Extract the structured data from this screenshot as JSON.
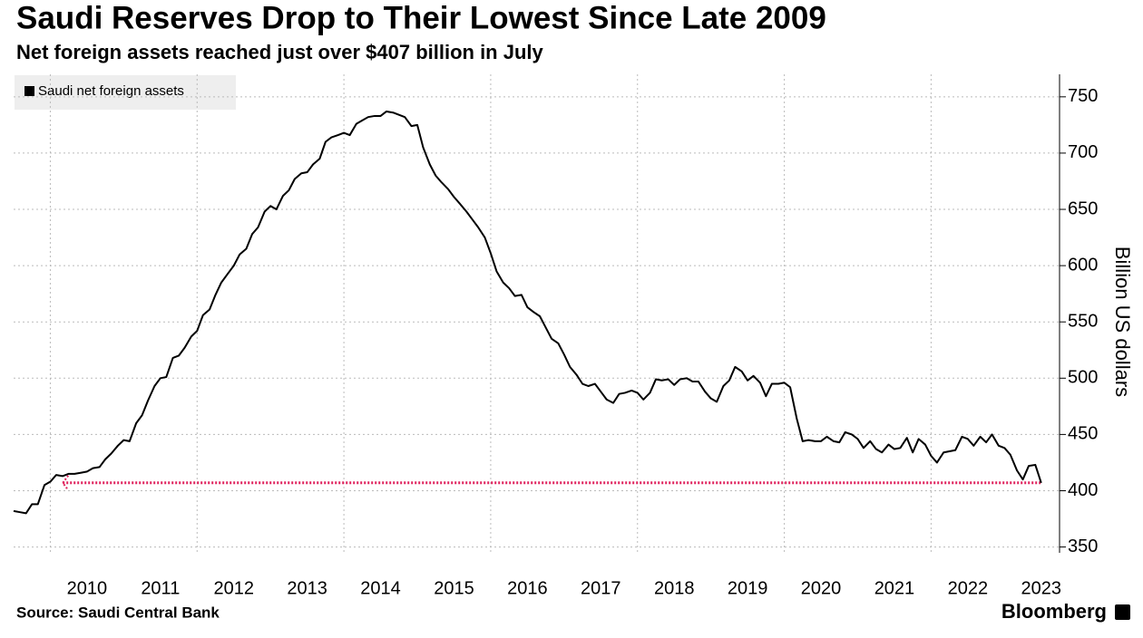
{
  "chart_data": {
    "type": "line",
    "title": "Saudi Reserves Drop to Their Lowest Since Late 2009",
    "subtitle": "Net foreign assets reached just over $407 billion in July",
    "y_axis_label": "Billion US dollars",
    "source": "Source: Saudi Central Bank",
    "brand": "Bloomberg",
    "x": [
      2009.5,
      2009.58,
      2009.67,
      2009.75,
      2009.83,
      2009.92,
      2010,
      2010.08,
      2010.17,
      2010.25,
      2010.33,
      2010.42,
      2010.5,
      2010.58,
      2010.67,
      2010.75,
      2010.83,
      2010.92,
      2011,
      2011.08,
      2011.17,
      2011.25,
      2011.33,
      2011.42,
      2011.5,
      2011.58,
      2011.67,
      2011.75,
      2011.83,
      2011.92,
      2012,
      2012.08,
      2012.17,
      2012.25,
      2012.33,
      2012.42,
      2012.5,
      2012.58,
      2012.67,
      2012.75,
      2012.83,
      2012.92,
      2013,
      2013.08,
      2013.17,
      2013.25,
      2013.33,
      2013.42,
      2013.5,
      2013.58,
      2013.67,
      2013.75,
      2013.83,
      2013.92,
      2014,
      2014.08,
      2014.17,
      2014.25,
      2014.33,
      2014.42,
      2014.5,
      2014.58,
      2014.67,
      2014.75,
      2014.83,
      2014.92,
      2015,
      2015.08,
      2015.17,
      2015.25,
      2015.33,
      2015.42,
      2015.5,
      2015.58,
      2015.67,
      2015.75,
      2015.83,
      2015.92,
      2016,
      2016.08,
      2016.17,
      2016.25,
      2016.33,
      2016.42,
      2016.5,
      2016.58,
      2016.67,
      2016.75,
      2016.83,
      2016.92,
      2017,
      2017.08,
      2017.17,
      2017.25,
      2017.33,
      2017.42,
      2017.5,
      2017.58,
      2017.67,
      2017.75,
      2017.83,
      2017.92,
      2018,
      2018.08,
      2018.17,
      2018.25,
      2018.33,
      2018.42,
      2018.5,
      2018.58,
      2018.67,
      2018.75,
      2018.83,
      2018.92,
      2019,
      2019.08,
      2019.17,
      2019.25,
      2019.33,
      2019.42,
      2019.5,
      2019.58,
      2019.67,
      2019.75,
      2019.83,
      2019.92,
      2020,
      2020.08,
      2020.17,
      2020.25,
      2020.33,
      2020.42,
      2020.5,
      2020.58,
      2020.67,
      2020.75,
      2020.83,
      2020.92,
      2021,
      2021.08,
      2021.17,
      2021.25,
      2021.33,
      2021.42,
      2021.5,
      2021.58,
      2021.67,
      2021.75,
      2021.83,
      2021.92,
      2022,
      2022.08,
      2022.17,
      2022.25,
      2022.33,
      2022.42,
      2022.5,
      2022.58,
      2022.67,
      2022.75,
      2022.83,
      2022.92,
      2023,
      2023.08,
      2023.17,
      2023.25,
      2023.33,
      2023.42,
      2023.5
    ],
    "series": [
      {
        "name": "Saudi net foreign assets",
        "color": "#000000",
        "values": [
          382,
          381,
          380,
          388,
          388,
          405,
          408,
          414,
          413,
          415,
          415,
          416,
          417,
          420,
          421,
          428,
          433,
          440,
          445,
          444,
          460,
          467,
          480,
          493,
          500,
          501,
          518,
          520,
          527,
          537,
          542,
          556,
          561,
          574,
          585,
          593,
          600,
          610,
          615,
          628,
          634,
          648,
          653,
          650,
          662,
          667,
          677,
          682,
          683,
          690,
          695,
          710,
          714,
          716,
          718,
          716,
          726,
          729,
          732,
          733,
          733,
          737,
          736,
          734,
          732,
          724,
          725,
          705,
          690,
          680,
          674,
          668,
          661,
          655,
          648,
          641,
          634,
          625,
          611,
          595,
          585,
          580,
          573,
          574,
          563,
          559,
          555,
          545,
          535,
          531,
          521,
          510,
          503,
          495,
          493,
          495,
          488,
          481,
          478,
          486,
          487,
          489,
          487,
          481,
          487,
          499,
          498,
          499,
          494,
          499,
          500,
          497,
          497,
          488,
          482,
          479,
          493,
          498,
          510,
          506,
          498,
          502,
          496,
          484,
          495,
          495,
          496,
          492,
          464,
          444,
          445,
          444,
          444,
          448,
          444,
          443,
          452,
          450,
          446,
          438,
          444,
          437,
          434,
          441,
          437,
          438,
          447,
          434,
          446,
          441,
          431,
          425,
          434,
          435,
          436,
          448,
          446,
          440,
          448,
          443,
          450,
          440,
          438,
          432,
          418,
          410,
          422,
          423,
          407
        ]
      }
    ],
    "reference_line": {
      "value": 407,
      "x_from": 2010.17,
      "color": "#e0245e"
    },
    "xlim": [
      2009.5,
      2023.75
    ],
    "xticks": [
      {
        "value": 2010.5,
        "label": "2010"
      },
      {
        "value": 2011.5,
        "label": "2011"
      },
      {
        "value": 2012.5,
        "label": "2012"
      },
      {
        "value": 2013.5,
        "label": "2013"
      },
      {
        "value": 2014.5,
        "label": "2014"
      },
      {
        "value": 2015.5,
        "label": "2015"
      },
      {
        "value": 2016.5,
        "label": "2016"
      },
      {
        "value": 2017.5,
        "label": "2017"
      },
      {
        "value": 2018.5,
        "label": "2018"
      },
      {
        "value": 2019.5,
        "label": "2019"
      },
      {
        "value": 2020.5,
        "label": "2020"
      },
      {
        "value": 2021.5,
        "label": "2021"
      },
      {
        "value": 2022.5,
        "label": "2022"
      },
      {
        "value": 2023.5,
        "label": "2023"
      }
    ],
    "xgrid": [
      2010,
      2012,
      2014,
      2016,
      2018,
      2020,
      2022
    ],
    "ylim": [
      340,
      770
    ],
    "yticks": [
      350,
      400,
      450,
      500,
      550,
      600,
      650,
      700,
      750
    ],
    "grid": true
  }
}
